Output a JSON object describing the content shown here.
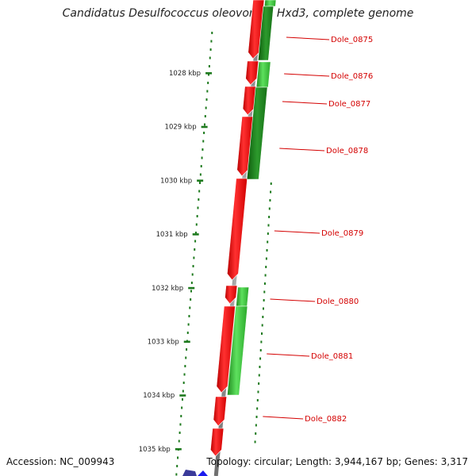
{
  "title": "Candidatus Desulfococcus oleovorans Hxd3, complete genome",
  "accession": "Accession: NC_009943",
  "topology": "Topology: circular; Length: 3,944,167 bp; Genes: 3,317",
  "colors": {
    "forward": "#ff1a1a",
    "reverse": "#33cc33",
    "backbone": "#8a8a8a",
    "tick": "#1e7a1e",
    "label": "#d40000",
    "partial": "#1a1acc"
  },
  "ticks": [
    {
      "label": "1028 kbp"
    },
    {
      "label": "1029 kbp"
    },
    {
      "label": "1030 kbp"
    },
    {
      "label": "1031 kbp"
    },
    {
      "label": "1032 kbp"
    },
    {
      "label": "1033 kbp"
    },
    {
      "label": "1034 kbp"
    },
    {
      "label": "1035 kbp"
    }
  ],
  "genes": [
    {
      "label": "Dole_0875"
    },
    {
      "label": "Dole_0876"
    },
    {
      "label": "Dole_0877"
    },
    {
      "label": "Dole_0878"
    },
    {
      "label": "Dole_0879"
    },
    {
      "label": "Dole_0880"
    },
    {
      "label": "Dole_0881"
    },
    {
      "label": "Dole_0882"
    }
  ]
}
